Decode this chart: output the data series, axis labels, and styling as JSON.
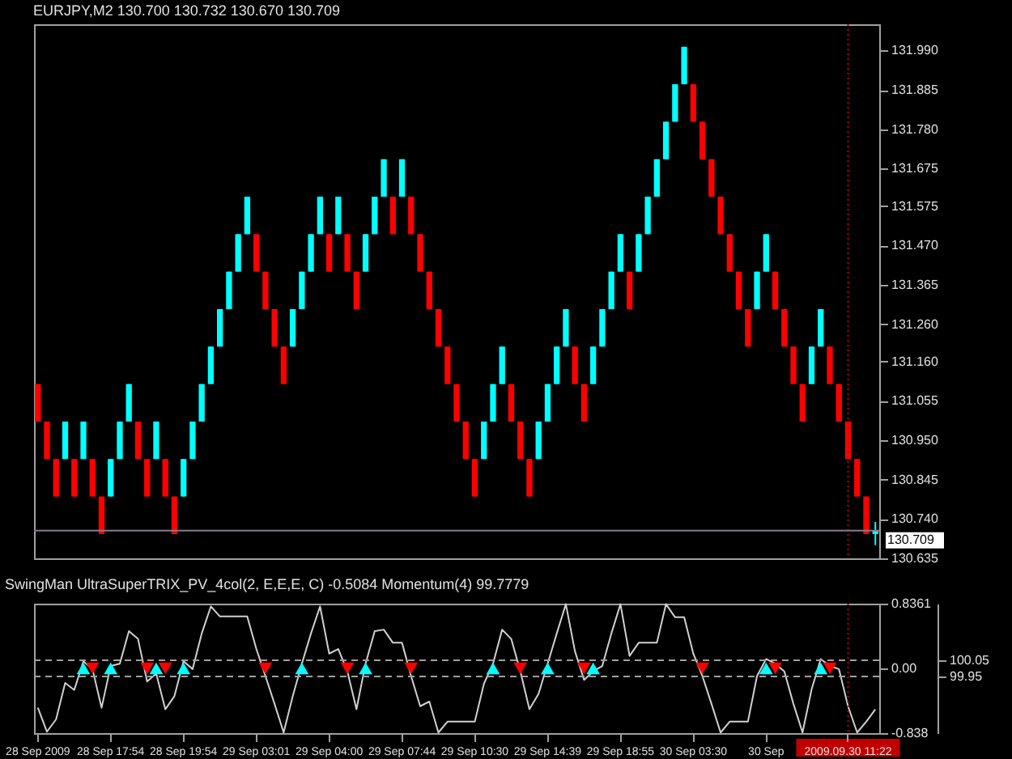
{
  "chart_data": [
    {
      "type": "candlestick",
      "title": "EURJPY,M2 130.700 130.732 130.670 130.709",
      "categories": [
        "28 Sep 2009",
        null,
        null,
        null,
        null,
        null,
        null,
        null,
        "28 Sep 17:54",
        null,
        null,
        null,
        null,
        null,
        null,
        null,
        "28 Sep 19:54",
        null,
        null,
        null,
        null,
        null,
        null,
        null,
        "29 Sep 03:01",
        null,
        null,
        null,
        null,
        null,
        null,
        null,
        "29 Sep 04:00",
        null,
        null,
        null,
        null,
        null,
        null,
        null,
        "29 Sep 07:44",
        null,
        null,
        null,
        null,
        null,
        null,
        null,
        "29 Sep 10:30",
        null,
        null,
        null,
        null,
        null,
        null,
        null,
        "29 Sep 14:39",
        null,
        null,
        null,
        null,
        null,
        null,
        null,
        "29 Sep 18:55",
        null,
        null,
        null,
        null,
        null,
        null,
        null,
        "30 Sep 03:30",
        null,
        null,
        null,
        null,
        null,
        null,
        null,
        "30 Sep",
        null,
        null,
        null,
        null,
        null,
        null,
        null,
        null,
        "2009.09.30 11:22",
        null,
        null,
        null
      ],
      "ohlc": [
        [
          131.1,
          131.1,
          131.0,
          131.0
        ],
        [
          131.0,
          131.0,
          130.9,
          130.9
        ],
        [
          130.9,
          130.9,
          130.8,
          130.8
        ],
        [
          130.9,
          131.0,
          130.9,
          131.0
        ],
        [
          130.9,
          130.9,
          130.8,
          130.8
        ],
        [
          130.9,
          131.0,
          130.9,
          131.0
        ],
        [
          130.9,
          130.9,
          130.8,
          130.8
        ],
        [
          130.8,
          130.8,
          130.7,
          130.7
        ],
        [
          130.8,
          130.9,
          130.8,
          130.9
        ],
        [
          130.9,
          131.0,
          130.9,
          131.0
        ],
        [
          131.0,
          131.1,
          131.0,
          131.1
        ],
        [
          131.0,
          131.0,
          130.9,
          130.9
        ],
        [
          130.9,
          130.9,
          130.8,
          130.8
        ],
        [
          130.9,
          131.0,
          130.9,
          131.0
        ],
        [
          130.9,
          130.9,
          130.8,
          130.8
        ],
        [
          130.8,
          130.8,
          130.7,
          130.7
        ],
        [
          130.8,
          130.9,
          130.8,
          130.9
        ],
        [
          130.9,
          131.0,
          130.9,
          131.0
        ],
        [
          131.0,
          131.1,
          131.0,
          131.1
        ],
        [
          131.1,
          131.2,
          131.1,
          131.2
        ],
        [
          131.2,
          131.3,
          131.2,
          131.3
        ],
        [
          131.3,
          131.4,
          131.3,
          131.4
        ],
        [
          131.4,
          131.5,
          131.4,
          131.5
        ],
        [
          131.5,
          131.6,
          131.5,
          131.6
        ],
        [
          131.5,
          131.5,
          131.4,
          131.4
        ],
        [
          131.4,
          131.4,
          131.3,
          131.3
        ],
        [
          131.3,
          131.3,
          131.2,
          131.2
        ],
        [
          131.2,
          131.2,
          131.1,
          131.1
        ],
        [
          131.2,
          131.3,
          131.2,
          131.3
        ],
        [
          131.3,
          131.4,
          131.3,
          131.4
        ],
        [
          131.4,
          131.5,
          131.4,
          131.5
        ],
        [
          131.5,
          131.6,
          131.5,
          131.6
        ],
        [
          131.5,
          131.5,
          131.4,
          131.4
        ],
        [
          131.5,
          131.6,
          131.5,
          131.6
        ],
        [
          131.5,
          131.5,
          131.4,
          131.4
        ],
        [
          131.4,
          131.4,
          131.3,
          131.3
        ],
        [
          131.4,
          131.5,
          131.4,
          131.5
        ],
        [
          131.5,
          131.6,
          131.5,
          131.6
        ],
        [
          131.6,
          131.7,
          131.6,
          131.7
        ],
        [
          131.6,
          131.6,
          131.5,
          131.5
        ],
        [
          131.6,
          131.7,
          131.6,
          131.7
        ],
        [
          131.6,
          131.6,
          131.5,
          131.5
        ],
        [
          131.5,
          131.5,
          131.4,
          131.4
        ],
        [
          131.4,
          131.4,
          131.3,
          131.3
        ],
        [
          131.3,
          131.3,
          131.2,
          131.2
        ],
        [
          131.2,
          131.2,
          131.1,
          131.1
        ],
        [
          131.1,
          131.1,
          131.0,
          131.0
        ],
        [
          131.0,
          131.0,
          130.9,
          130.9
        ],
        [
          130.9,
          130.9,
          130.8,
          130.8
        ],
        [
          130.9,
          131.0,
          130.9,
          131.0
        ],
        [
          131.0,
          131.1,
          131.0,
          131.1
        ],
        [
          131.1,
          131.2,
          131.1,
          131.2
        ],
        [
          131.1,
          131.1,
          131.0,
          131.0
        ],
        [
          131.0,
          131.0,
          130.9,
          130.9
        ],
        [
          130.9,
          130.9,
          130.8,
          130.8
        ],
        [
          130.9,
          131.0,
          130.9,
          131.0
        ],
        [
          131.0,
          131.1,
          131.0,
          131.1
        ],
        [
          131.1,
          131.2,
          131.1,
          131.2
        ],
        [
          131.2,
          131.3,
          131.2,
          131.3
        ],
        [
          131.2,
          131.2,
          131.1,
          131.1
        ],
        [
          131.1,
          131.1,
          131.0,
          131.0
        ],
        [
          131.1,
          131.2,
          131.1,
          131.2
        ],
        [
          131.2,
          131.3,
          131.2,
          131.3
        ],
        [
          131.3,
          131.4,
          131.3,
          131.4
        ],
        [
          131.4,
          131.5,
          131.4,
          131.5
        ],
        [
          131.4,
          131.4,
          131.3,
          131.3
        ],
        [
          131.4,
          131.5,
          131.4,
          131.5
        ],
        [
          131.5,
          131.6,
          131.5,
          131.6
        ],
        [
          131.6,
          131.7,
          131.6,
          131.7
        ],
        [
          131.7,
          131.8,
          131.7,
          131.8
        ],
        [
          131.8,
          131.9,
          131.8,
          131.9
        ],
        [
          131.9,
          132.0,
          131.9,
          132.0
        ],
        [
          131.9,
          131.9,
          131.8,
          131.8
        ],
        [
          131.8,
          131.8,
          131.7,
          131.7
        ],
        [
          131.7,
          131.7,
          131.6,
          131.6
        ],
        [
          131.6,
          131.6,
          131.5,
          131.5
        ],
        [
          131.5,
          131.5,
          131.4,
          131.4
        ],
        [
          131.4,
          131.4,
          131.3,
          131.3
        ],
        [
          131.3,
          131.3,
          131.2,
          131.2
        ],
        [
          131.3,
          131.4,
          131.3,
          131.4
        ],
        [
          131.4,
          131.5,
          131.4,
          131.5
        ],
        [
          131.4,
          131.4,
          131.3,
          131.3
        ],
        [
          131.3,
          131.3,
          131.2,
          131.2
        ],
        [
          131.2,
          131.2,
          131.1,
          131.1
        ],
        [
          131.1,
          131.1,
          131.0,
          131.0
        ],
        [
          131.1,
          131.2,
          131.1,
          131.2
        ],
        [
          131.2,
          131.3,
          131.2,
          131.3
        ],
        [
          131.2,
          131.2,
          131.1,
          131.1
        ],
        [
          131.1,
          131.1,
          131.0,
          131.0
        ],
        [
          131.0,
          131.0,
          130.9,
          130.9
        ],
        [
          130.9,
          130.9,
          130.8,
          130.8
        ],
        [
          130.8,
          130.8,
          130.7,
          130.7
        ],
        [
          130.7,
          130.732,
          130.67,
          130.709
        ]
      ],
      "colors": [
        "#ff0000",
        "#ff0000",
        "#ff0000",
        "#00ffff",
        "#ff0000",
        "#00ffff",
        "#ff0000",
        "#ff0000",
        "#00ffff",
        "#00ffff",
        "#00ffff",
        "#ff0000",
        "#ff0000",
        "#00ffff",
        "#ff0000",
        "#ff0000",
        "#00ffff",
        "#00ffff",
        "#00ffff",
        "#00ffff",
        "#00ffff",
        "#00ffff",
        "#00ffff",
        "#00ffff",
        "#ff0000",
        "#ff0000",
        "#ff0000",
        "#ff0000",
        "#00ffff",
        "#00ffff",
        "#00ffff",
        "#00ffff",
        "#ff0000",
        "#00ffff",
        "#ff0000",
        "#ff0000",
        "#00ffff",
        "#00ffff",
        "#00ffff",
        "#ff0000",
        "#00ffff",
        "#ff0000",
        "#ff0000",
        "#ff0000",
        "#ff0000",
        "#ff0000",
        "#ff0000",
        "#ff0000",
        "#ff0000",
        "#00ffff",
        "#00ffff",
        "#00ffff",
        "#ff0000",
        "#ff0000",
        "#ff0000",
        "#00ffff",
        "#00ffff",
        "#00ffff",
        "#00ffff",
        "#ff0000",
        "#ff0000",
        "#00ffff",
        "#00ffff",
        "#00ffff",
        "#00ffff",
        "#ff0000",
        "#00ffff",
        "#00ffff",
        "#00ffff",
        "#00ffff",
        "#00ffff",
        "#00ffff",
        "#ff0000",
        "#ff0000",
        "#ff0000",
        "#ff0000",
        "#ff0000",
        "#ff0000",
        "#ff0000",
        "#00ffff",
        "#00ffff",
        "#ff0000",
        "#ff0000",
        "#ff0000",
        "#ff0000",
        "#00ffff",
        "#00ffff",
        "#ff0000",
        "#ff0000",
        "#ff0000",
        "#ff0000",
        "#ff0000",
        "#00ffff"
      ],
      "ylim": [
        130.635,
        132.06
      ],
      "yticks": [
        {
          "value": 131.99,
          "label": "131.990"
        },
        131.885,
        {
          "value": 131.78,
          "label": "131.780"
        },
        131.675,
        131.575,
        {
          "value": 131.47,
          "label": "131.470"
        },
        131.365,
        {
          "value": 131.26,
          "label": "131.260"
        },
        {
          "value": 131.16,
          "label": "131.160"
        },
        131.055,
        {
          "value": 130.95,
          "label": "130.950"
        },
        130.845,
        {
          "value": 130.74,
          "label": "130.740"
        },
        130.635
      ],
      "tick_labels": "y",
      "ref_lines": [
        {
          "axis": "x",
          "value": "2009.09.30 11:22",
          "color": "#c00000",
          "line_style": "dotted"
        },
        {
          "axis": "y",
          "value": 130.709,
          "label": "130.709",
          "color": "#8a7a8a",
          "line_style": "solid"
        }
      ]
    },
    {
      "type": "line",
      "title": "SwingMan UltraSuperTRIX_PV_4col(2, E,E,E, C) -0.5084 Momentum(4) 99.7779",
      "categories": [
        "28 Sep 2009",
        null,
        null,
        null,
        null,
        null,
        null,
        null,
        "28 Sep 17:54",
        null,
        null,
        null,
        null,
        null,
        null,
        null,
        "28 Sep 19:54",
        null,
        null,
        null,
        null,
        null,
        null,
        null,
        "29 Sep 03:01",
        null,
        null,
        null,
        null,
        null,
        null,
        null,
        "29 Sep 04:00",
        null,
        null,
        null,
        null,
        null,
        null,
        null,
        "29 Sep 07:44",
        null,
        null,
        null,
        null,
        null,
        null,
        null,
        "29 Sep 10:30",
        null,
        null,
        null,
        null,
        null,
        null,
        null,
        "29 Sep 14:39",
        null,
        null,
        null,
        null,
        null,
        null,
        null,
        "29 Sep 18:55",
        null,
        null,
        null,
        null,
        null,
        null,
        null,
        "30 Sep 03:30",
        null,
        null,
        null,
        null,
        null,
        null,
        null,
        "30 Sep",
        null,
        null,
        null,
        null,
        null,
        null,
        null,
        null,
        "2009.09.30 11:22",
        null,
        null,
        null
      ],
      "series": [
        {
          "type": "line",
          "color": "#d0d0d0",
          "values": [
            -0.51,
            -0.82,
            -0.66,
            -0.19,
            -0.28,
            0.09,
            -0.01,
            -0.51,
            0.03,
            0.06,
            0.48,
            0.38,
            -0.17,
            -0.07,
            -0.53,
            -0.36,
            0.09,
            -0.01,
            0.45,
            0.8,
            0.67,
            0.67,
            0.67,
            0.67,
            0.25,
            -0.1,
            -0.46,
            -0.83,
            -0.36,
            0.06,
            0.45,
            0.8,
            0.19,
            0.25,
            -0.04,
            -0.53,
            0.06,
            0.48,
            0.5,
            0.33,
            0.33,
            -0.1,
            -0.49,
            -0.43,
            -0.83,
            -0.69,
            -0.69,
            -0.69,
            -0.69,
            -0.2,
            0.06,
            0.5,
            0.38,
            -0.04,
            -0.53,
            -0.33,
            0.06,
            0.45,
            0.83,
            0.22,
            -0.15,
            -0.04,
            0.03,
            0.45,
            0.83,
            0.16,
            0.33,
            0.33,
            0.33,
            0.83,
            0.66,
            0.66,
            0.19,
            -0.1,
            -0.46,
            -0.83,
            -0.69,
            -0.69,
            -0.69,
            -0.1,
            0.12,
            0.06,
            -0.04,
            -0.46,
            -0.83,
            -0.27,
            0.12,
            0.03,
            -0.01,
            -0.49,
            -0.83,
            -0.69,
            -0.53
          ]
        },
        {
          "type": "scatter",
          "marker": "triangle",
          "color": "#00ffff",
          "values": [
            null,
            null,
            null,
            null,
            null,
            0,
            null,
            null,
            0,
            null,
            null,
            null,
            null,
            0,
            null,
            null,
            0,
            null,
            null,
            null,
            null,
            null,
            null,
            null,
            null,
            null,
            null,
            null,
            null,
            0,
            null,
            null,
            null,
            null,
            null,
            null,
            0,
            null,
            null,
            null,
            null,
            null,
            null,
            null,
            null,
            null,
            null,
            null,
            null,
            null,
            0,
            null,
            null,
            null,
            null,
            null,
            0,
            null,
            null,
            null,
            null,
            0,
            null,
            null,
            null,
            null,
            null,
            null,
            null,
            null,
            null,
            null,
            null,
            null,
            null,
            null,
            null,
            null,
            null,
            null,
            0,
            null,
            null,
            null,
            null,
            null,
            0,
            null,
            null,
            null,
            null,
            null,
            null
          ]
        },
        {
          "type": "scatter",
          "marker": "triangle-down",
          "color": "#ff0000",
          "values": [
            null,
            null,
            null,
            null,
            null,
            null,
            0,
            null,
            null,
            null,
            null,
            null,
            0,
            null,
            0,
            null,
            null,
            null,
            null,
            null,
            null,
            null,
            null,
            null,
            null,
            0,
            null,
            null,
            null,
            null,
            null,
            null,
            null,
            null,
            0,
            null,
            null,
            null,
            null,
            null,
            null,
            0,
            null,
            null,
            null,
            null,
            null,
            null,
            null,
            null,
            null,
            null,
            null,
            0,
            null,
            null,
            null,
            null,
            null,
            null,
            0,
            null,
            null,
            null,
            null,
            null,
            null,
            null,
            null,
            null,
            null,
            null,
            null,
            0,
            null,
            null,
            null,
            null,
            null,
            null,
            null,
            0,
            null,
            null,
            null,
            null,
            null,
            0,
            null,
            null,
            null,
            null,
            null
          ]
        }
      ],
      "ylim": [
        -0.838,
        0.8361
      ],
      "yticks": [
        0.8361,
        {
          "value": 0,
          "label": "0.00"
        },
        -0.838
      ],
      "y2lim": [
        99.6,
        100.4
      ],
      "y2ticks": [
        100.05,
        99.95
      ],
      "ref_lines": [
        {
          "axis": "x",
          "value": "2009.09.30 11:22",
          "color": "#c00000",
          "line_style": "dotted"
        },
        {
          "axis": "y2",
          "value": 100.05,
          "color": "#a0a0a0",
          "line_style": "dashed"
        },
        {
          "axis": "y2",
          "value": 99.95,
          "color": "#a0a0a0",
          "line_style": "dashed"
        }
      ]
    }
  ]
}
